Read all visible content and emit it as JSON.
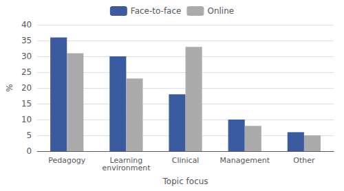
{
  "chart_data": {
    "type": "bar",
    "xlabel": "Topic focus",
    "ylabel": "%",
    "categories": [
      "Pedagogy",
      "Learning\nenvironment",
      "Clinical",
      "Management",
      "Other"
    ],
    "series": [
      {
        "name": "Face-to-face",
        "color": "#3A5BA0",
        "values": [
          36,
          30,
          18,
          10,
          6
        ]
      },
      {
        "name": "Online",
        "color": "#ABABAB",
        "values": [
          31,
          23,
          33,
          8,
          5
        ]
      }
    ],
    "ylim": [
      0,
      40
    ],
    "yticks": [
      0,
      5,
      10,
      15,
      20,
      25,
      30,
      35,
      40
    ],
    "grid": true,
    "legend": "top"
  }
}
